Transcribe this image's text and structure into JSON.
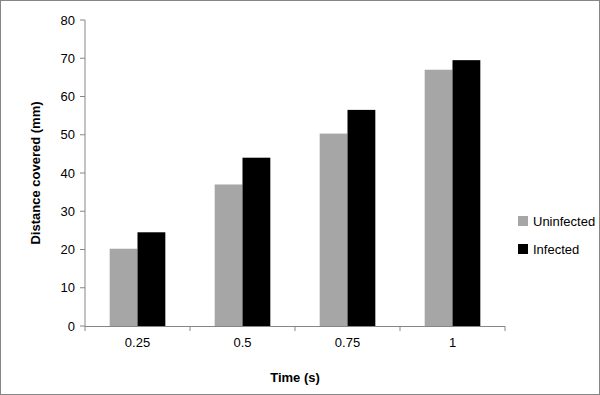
{
  "chart_data": {
    "type": "bar",
    "x_label": "Time (s)",
    "y_label": "Distance covered (mm)",
    "categories": [
      "0.25",
      "0.5",
      "0.75",
      "1"
    ],
    "series": [
      {
        "name": "Uninfected",
        "color": "#a6a6a6",
        "values": [
          20.2,
          37,
          50.3,
          67
        ]
      },
      {
        "name": "Infected",
        "color": "#000000",
        "values": [
          24.5,
          44,
          56.5,
          69.5
        ]
      }
    ],
    "ylim": [
      0,
      80
    ],
    "yticks": [
      0,
      10,
      20,
      30,
      40,
      50,
      60,
      70,
      80
    ],
    "grid": false,
    "legend": "right"
  }
}
